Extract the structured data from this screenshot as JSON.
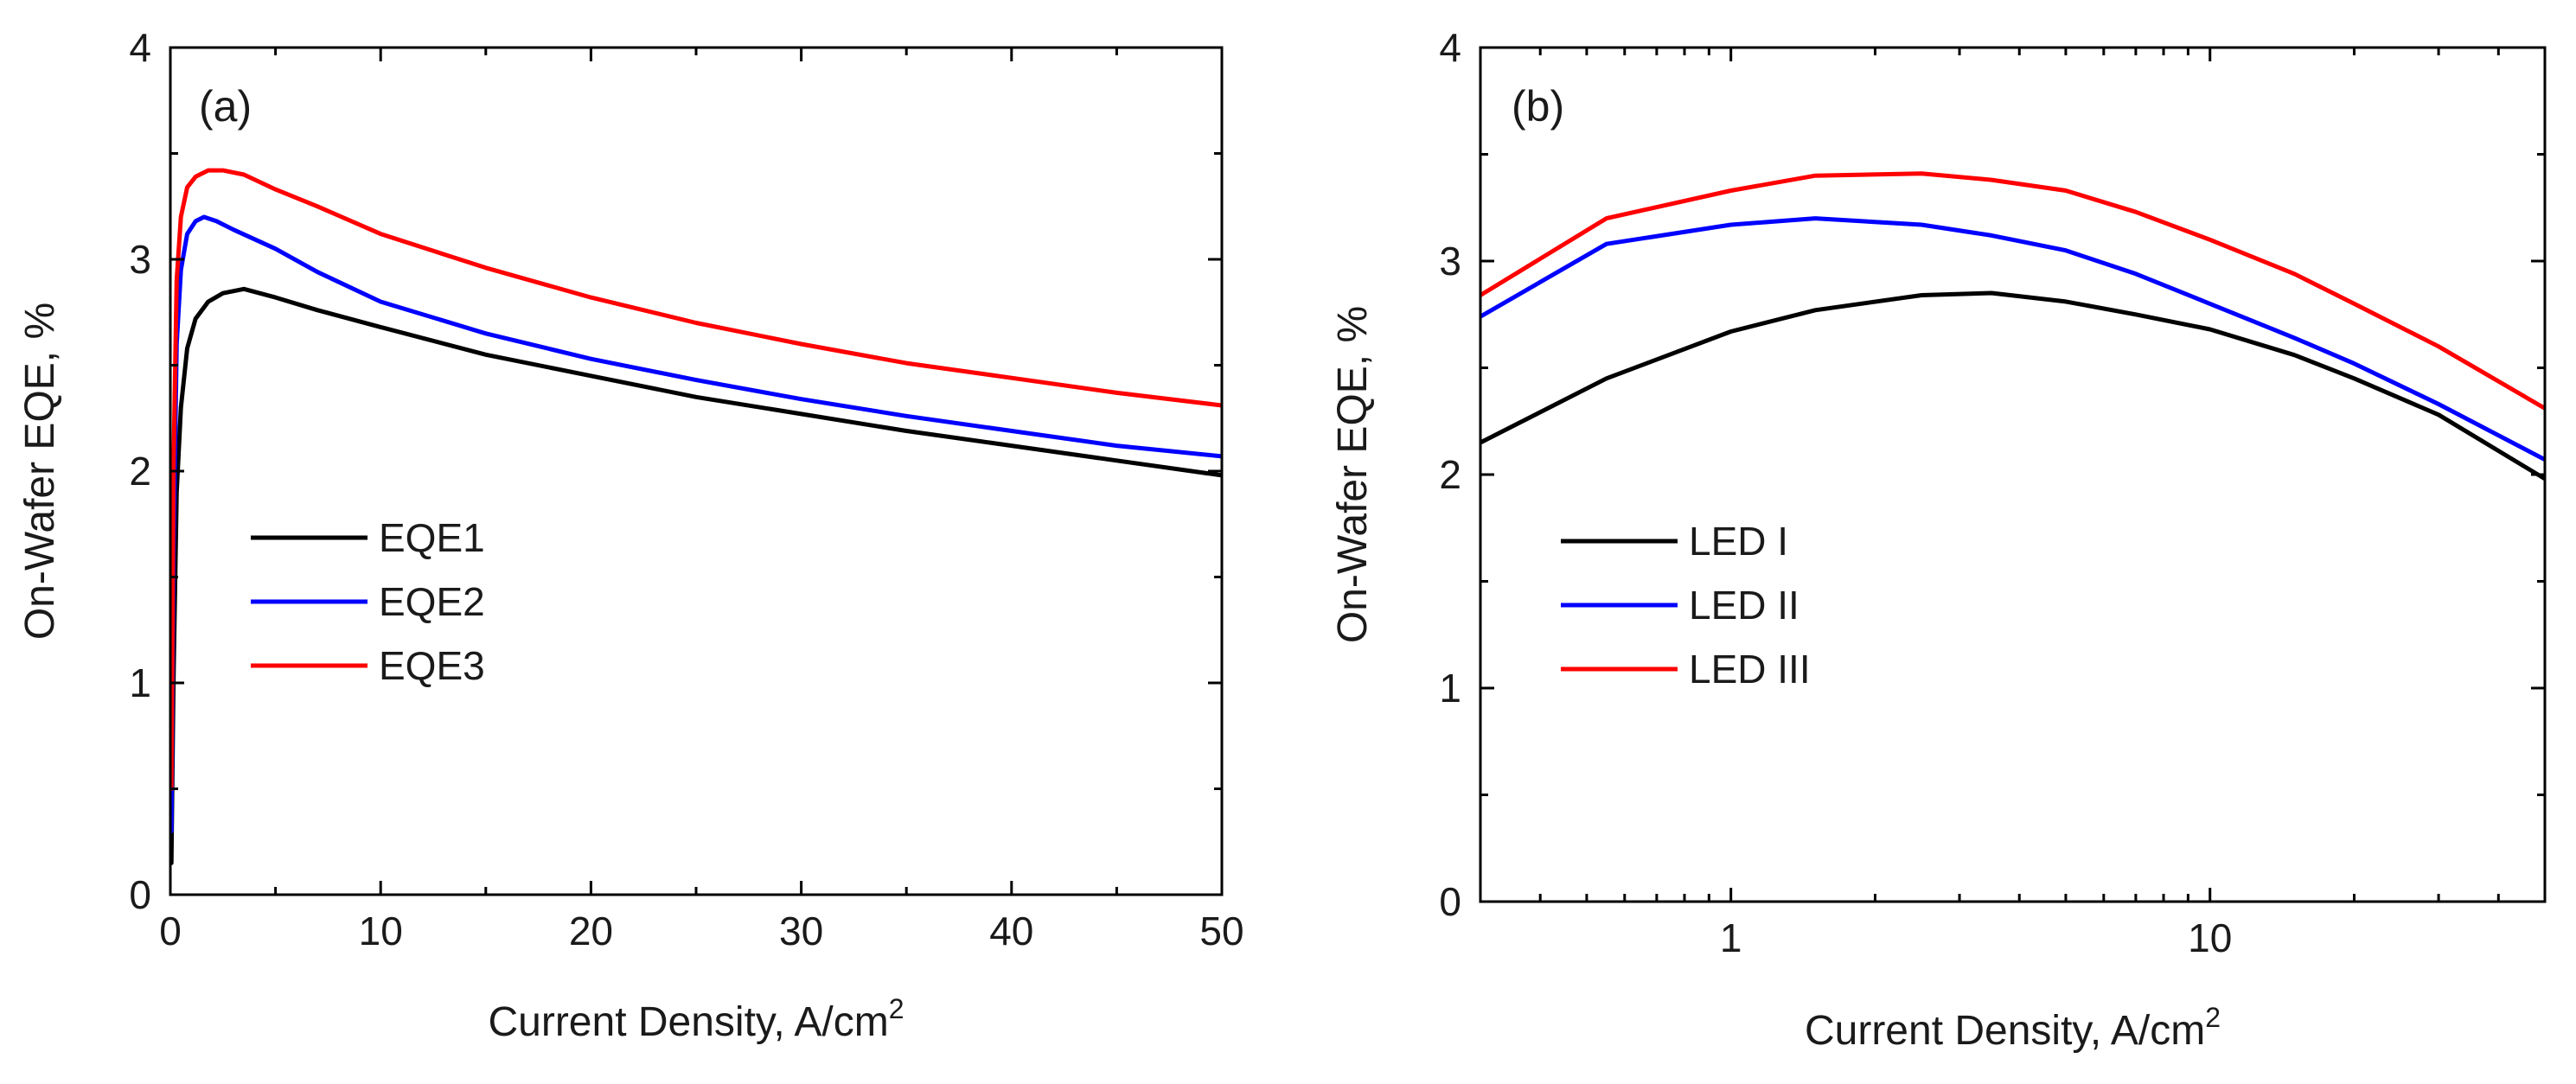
{
  "chart_data": [
    {
      "type": "line",
      "panel_label": "(a)",
      "xlabel": "Current Density, A/cm",
      "xlabel_sup": "2",
      "ylabel": "On-Wafer EQE, %",
      "x_scale": "linear",
      "xlim": [
        0,
        50
      ],
      "ylim": [
        0,
        4
      ],
      "xticks": [
        0,
        10,
        20,
        30,
        40,
        50
      ],
      "xtick_labels": [
        "0",
        "10",
        "20",
        "30",
        "40",
        "50"
      ],
      "yticks": [
        0,
        1,
        2,
        3,
        4
      ],
      "ytick_labels": [
        "0",
        "1",
        "2",
        "3",
        "4"
      ],
      "grid": false,
      "legend_position": "center-left",
      "series": [
        {
          "name": "EQE1",
          "color": "#000000",
          "x": [
            0.05,
            0.15,
            0.3,
            0.5,
            0.8,
            1.2,
            1.8,
            2.5,
            3.5,
            5,
            7,
            10,
            15,
            20,
            25,
            30,
            35,
            40,
            45,
            50
          ],
          "y": [
            0.15,
            1.0,
            1.9,
            2.3,
            2.58,
            2.72,
            2.8,
            2.84,
            2.86,
            2.82,
            2.76,
            2.68,
            2.55,
            2.45,
            2.35,
            2.27,
            2.19,
            2.12,
            2.05,
            1.98
          ]
        },
        {
          "name": "EQE2",
          "color": "#0000ff",
          "x": [
            0.05,
            0.15,
            0.3,
            0.5,
            0.8,
            1.2,
            1.6,
            2.2,
            3,
            5,
            7,
            10,
            15,
            20,
            25,
            30,
            35,
            40,
            45,
            50
          ],
          "y": [
            0.3,
            1.6,
            2.6,
            2.95,
            3.12,
            3.18,
            3.2,
            3.18,
            3.14,
            3.05,
            2.94,
            2.8,
            2.65,
            2.53,
            2.43,
            2.34,
            2.26,
            2.19,
            2.12,
            2.07
          ]
        },
        {
          "name": "EQE3",
          "color": "#ff0000",
          "x": [
            0.05,
            0.15,
            0.3,
            0.5,
            0.8,
            1.2,
            1.8,
            2.5,
            3.5,
            5,
            7,
            10,
            15,
            20,
            25,
            30,
            35,
            40,
            45,
            50
          ],
          "y": [
            0.5,
            2.0,
            2.9,
            3.2,
            3.34,
            3.39,
            3.42,
            3.42,
            3.4,
            3.33,
            3.25,
            3.12,
            2.96,
            2.82,
            2.7,
            2.6,
            2.51,
            2.44,
            2.37,
            2.31
          ]
        }
      ]
    },
    {
      "type": "line",
      "panel_label": "(b)",
      "xlabel": "Current Density, A/cm",
      "xlabel_sup": "2",
      "ylabel": "On-Wafer EQE, %",
      "x_scale": "log",
      "xlim": [
        0.3,
        50
      ],
      "ylim": [
        0,
        4
      ],
      "xticks": [
        1,
        10
      ],
      "xtick_labels": [
        "1",
        "10"
      ],
      "yticks": [
        0,
        1,
        2,
        3,
        4
      ],
      "ytick_labels": [
        "0",
        "1",
        "2",
        "3",
        "4"
      ],
      "grid": false,
      "legend_position": "center-left",
      "series": [
        {
          "name": "LED I",
          "color": "#000000",
          "x": [
            0.3,
            0.55,
            1.0,
            1.5,
            2.5,
            3.5,
            5,
            7,
            10,
            15,
            20,
            30,
            50
          ],
          "y": [
            2.15,
            2.45,
            2.67,
            2.77,
            2.84,
            2.85,
            2.81,
            2.75,
            2.68,
            2.56,
            2.45,
            2.28,
            1.98
          ]
        },
        {
          "name": "LED II",
          "color": "#0000ff",
          "x": [
            0.3,
            0.55,
            1.0,
            1.5,
            2.5,
            3.5,
            5,
            7,
            10,
            15,
            20,
            30,
            50
          ],
          "y": [
            2.74,
            3.08,
            3.17,
            3.2,
            3.17,
            3.12,
            3.05,
            2.94,
            2.8,
            2.64,
            2.52,
            2.33,
            2.07
          ]
        },
        {
          "name": "LED III",
          "color": "#ff0000",
          "x": [
            0.3,
            0.55,
            1.0,
            1.5,
            2.5,
            3.5,
            5,
            7,
            10,
            15,
            20,
            30,
            50
          ],
          "y": [
            2.84,
            3.2,
            3.33,
            3.4,
            3.41,
            3.38,
            3.33,
            3.23,
            3.1,
            2.94,
            2.8,
            2.6,
            2.31
          ]
        }
      ]
    }
  ]
}
